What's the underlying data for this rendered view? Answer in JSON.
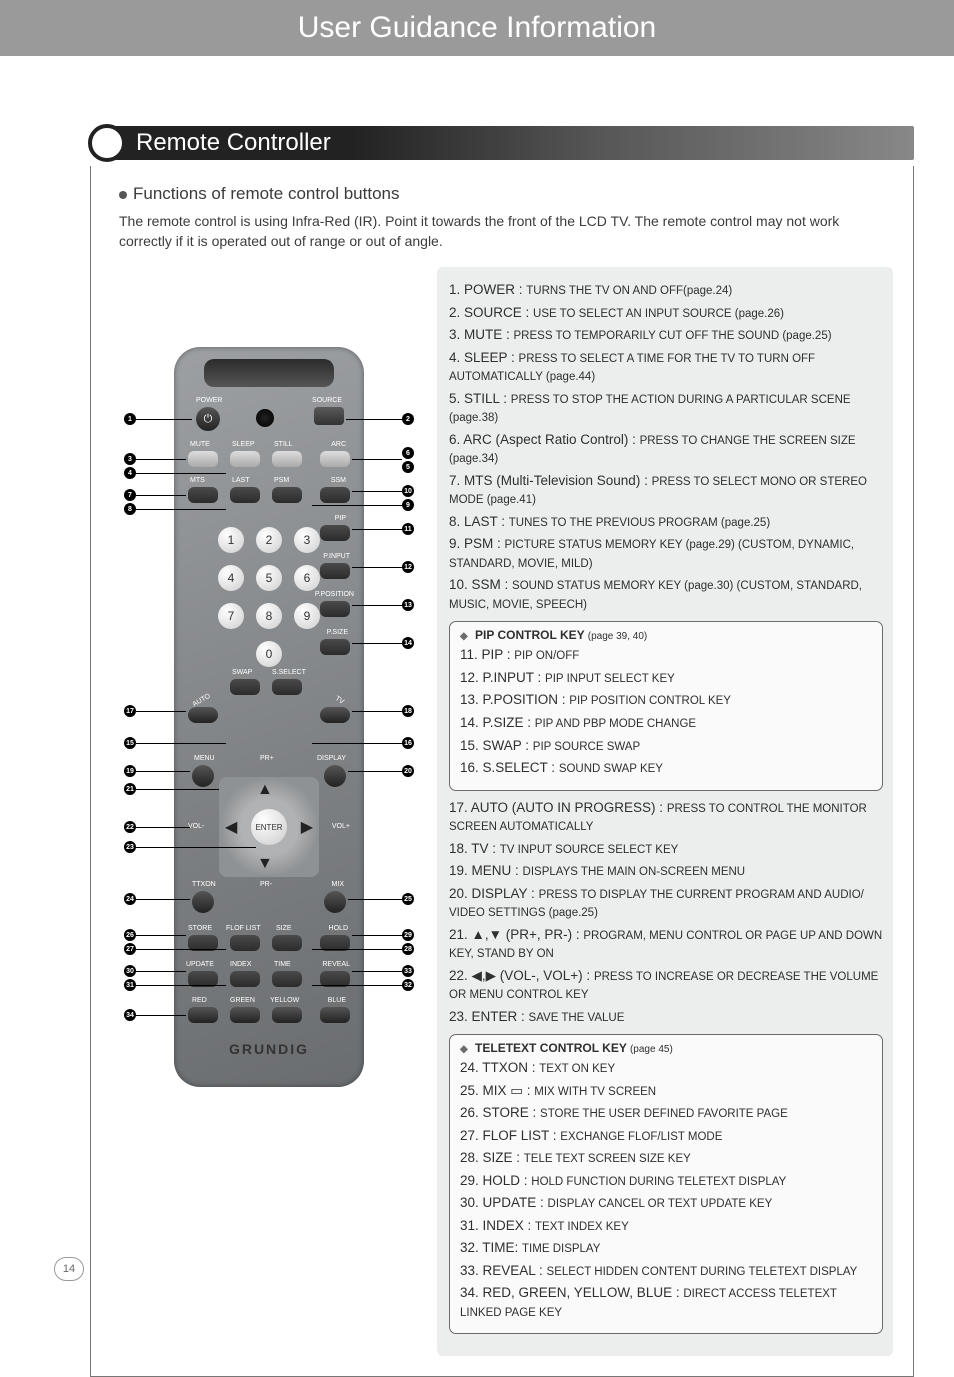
{
  "page": {
    "banner_title": "User Guidance Information",
    "section_title": "Remote Controller",
    "sub_heading": "Functions of remote control buttons",
    "intro": "The remote control is using Infra-Red (IR). Point it towards the front of the LCD TV. The remote control may not work correctly if it is operated out of range or out of angle.",
    "page_number": "14"
  },
  "remote": {
    "brand": "GRUNDIG",
    "row_labels_top": [
      "POWER",
      "SOURCE"
    ],
    "row_labels_2": [
      "MUTE",
      "SLEEP",
      "STILL",
      "ARC"
    ],
    "row_labels_3": [
      "MTS",
      "LAST",
      "PSM",
      "SSM"
    ],
    "row_labels_mid": [
      "PIP",
      "P.INPUT",
      "P.POSITION",
      "P.SIZE"
    ],
    "row_labels_swap": [
      "AUTO",
      "SWAP",
      "S.SELECT",
      "TV"
    ],
    "row_labels_menu": [
      "MENU",
      "PR+",
      "DISPLAY"
    ],
    "row_labels_vol": [
      "VOL-",
      "ENTER",
      "VOL+"
    ],
    "row_labels_ttx": [
      "TTXON",
      "PR-",
      "MIX"
    ],
    "row_labels_ttx2": [
      "STORE",
      "FLOF LIST",
      "SIZE",
      "HOLD"
    ],
    "row_labels_ttx3": [
      "UPDATE",
      "INDEX",
      "TIME",
      "REVEAL"
    ],
    "row_labels_color": [
      "RED",
      "GREEN",
      "YELLOW",
      "BLUE"
    ]
  },
  "functions": {
    "main": [
      {
        "n": "1",
        "k": "POWER :",
        "v": "TURNS THE TV ON AND OFF(page.24)"
      },
      {
        "n": "2",
        "k": "SOURCE :",
        "v": "USE TO SELECT AN INPUT SOURCE (page.26)"
      },
      {
        "n": "3",
        "k": "MUTE :",
        "v": "PRESS TO TEMPORARILY CUT OFF THE SOUND (page.25)"
      },
      {
        "n": "4",
        "k": "SLEEP :",
        "v": "PRESS TO SELECT A TIME FOR THE TV TO TURN OFF AUTOMATICALLY (page.44)"
      },
      {
        "n": "5",
        "k": "STILL :",
        "v": "PRESS TO STOP THE ACTION DURING A PARTICULAR SCENE (page.38)"
      },
      {
        "n": "6",
        "k": "ARC (Aspect Ratio Control) :",
        "v": "PRESS TO CHANGE THE SCREEN SIZE (page.34)"
      },
      {
        "n": "7",
        "k": "MTS (Multi-Television Sound) :",
        "v": "PRESS TO SELECT MONO OR STEREO MODE (page.41)"
      },
      {
        "n": "8",
        "k": "LAST :",
        "v": "TUNES TO THE PREVIOUS PROGRAM (page.25)"
      },
      {
        "n": "9",
        "k": "PSM :",
        "v": "PICTURE STATUS MEMORY KEY (page.29) (CUSTOM, DYNAMIC, STANDARD,  MOVIE, MILD)"
      },
      {
        "n": "10",
        "k": "SSM :",
        "v": "SOUND STATUS MEMORY KEY (page.30) (CUSTOM, STANDARD,  MUSIC, MOVIE, SPEECH)"
      }
    ],
    "pip": {
      "title": "PIP CONTROL KEY",
      "page": "(page 39, 40)",
      "items": [
        {
          "n": "11",
          "k": "PIP :",
          "v": "PIP ON/OFF"
        },
        {
          "n": "12",
          "k": "P.INPUT :",
          "v": "PIP INPUT SELECT KEY"
        },
        {
          "n": "13",
          "k": "P.POSITION :",
          "v": "PIP POSITION CONTROL KEY"
        },
        {
          "n": "14",
          "k": "P.SIZE :",
          "v": "PIP AND PBP MODE CHANGE"
        },
        {
          "n": "15",
          "k": "SWAP :",
          "v": "PIP SOURCE SWAP"
        },
        {
          "n": "16",
          "k": "S.SELECT :",
          "v": "SOUND SWAP KEY"
        }
      ]
    },
    "mid": [
      {
        "n": "17",
        "k": "AUTO (AUTO IN PROGRESS) :",
        "v": "PRESS TO CONTROL  THE MONITOR SCREEN AUTOMATICALLY"
      },
      {
        "n": "18",
        "k": "TV :",
        "v": "TV INPUT SOURCE SELECT KEY"
      },
      {
        "n": "19",
        "k": "MENU :",
        "v": "DISPLAYS THE MAIN ON-SCREEN MENU"
      },
      {
        "n": "20",
        "k": "DISPLAY :",
        "v": "PRESS TO DISPLAY THE CURRENT PROGRAM AND AUDIO/ VIDEO SETTINGS (page.25)"
      },
      {
        "n": "21",
        "k": "▲,▼ (PR+, PR-) :",
        "v": "PROGRAM, MENU CONTROL OR PAGE UP AND DOWN KEY, STAND BY ON"
      },
      {
        "n": "22",
        "k": "◀,▶ (VOL-, VOL+) :",
        "v": "PRESS TO INCREASE OR DECREASE THE VOLUME OR MENU CONTROL KEY"
      },
      {
        "n": "23",
        "k": "ENTER :",
        "v": "SAVE THE VALUE"
      }
    ],
    "teletext": {
      "title": "TELETEXT CONTROL KEY",
      "page": "(page 45)",
      "items": [
        {
          "n": "24",
          "k": "TTXON :",
          "v": "TEXT ON KEY"
        },
        {
          "n": "25",
          "k": "MIX ▭ :",
          "v": "MIX WITH TV SCREEN"
        },
        {
          "n": "26",
          "k": "STORE :",
          "v": "STORE THE USER DEFINED FAVORITE PAGE"
        },
        {
          "n": "27",
          "k": "FLOF LIST :",
          "v": "EXCHANGE FLOF/LIST MODE"
        },
        {
          "n": "28",
          "k": "SIZE :",
          "v": "TELE TEXT SCREEN SIZE KEY"
        },
        {
          "n": "29",
          "k": "HOLD :",
          "v": "HOLD FUNCTION DURING TELETEXT DISPLAY"
        },
        {
          "n": "30",
          "k": "UPDATE :",
          "v": "DISPLAY CANCEL OR TEXT UPDATE KEY"
        },
        {
          "n": "31",
          "k": "INDEX :",
          "v": "TEXT INDEX KEY"
        },
        {
          "n": "32",
          "k": "TIME:",
          "v": "TIME DISPLAY"
        },
        {
          "n": "33",
          "k": "REVEAL :",
          "v": "SELECT HIDDEN CONTENT DURING TELETEXT DISPLAY"
        },
        {
          "n": "34",
          "k": "RED, GREEN, YELLOW, BLUE :",
          "v": "DIRECT ACCESS TELETEXT LINKED PAGE KEY"
        }
      ]
    }
  },
  "colors": {
    "banner_bg": "#9a9a9a",
    "section_dark": "#222222",
    "desc_bg": "#eceded",
    "remote_bg_a": "#9da0a3",
    "remote_bg_b": "#6a6d70"
  }
}
